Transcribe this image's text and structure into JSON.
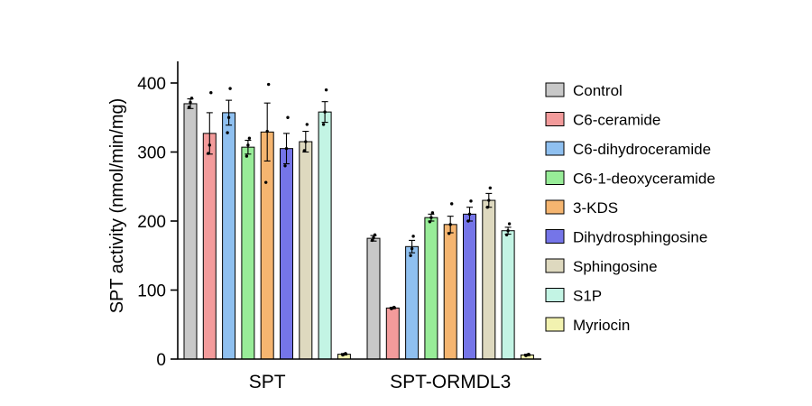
{
  "chart_data": {
    "type": "bar",
    "title": "",
    "xlabel": "",
    "ylabel": "SPT activity (nmol/min/mg)",
    "ylim": [
      0,
      430
    ],
    "yticks": [
      0,
      100,
      200,
      300,
      400
    ],
    "grid": false,
    "legend_position": "right",
    "categories": [
      "SPT",
      "SPT-ORMDL3"
    ],
    "series": [
      {
        "name": "Control",
        "color": "#c8c8c8",
        "values": [
          370,
          175
        ],
        "errors": [
          7,
          4
        ],
        "points": [
          [
            365,
            372,
            378
          ],
          [
            172,
            176,
            180
          ]
        ]
      },
      {
        "name": "C6-ceramide",
        "color": "#f39b9b",
        "values": [
          327,
          74
        ],
        "errors": [
          30,
          1
        ],
        "points": [
          [
            298,
            310,
            386
          ],
          [
            73,
            74,
            75
          ]
        ]
      },
      {
        "name": "C6-dihydroceramide",
        "color": "#8fc0f0",
        "values": [
          357,
          163
        ],
        "errors": [
          18,
          9
        ],
        "points": [
          [
            328,
            350,
            392
          ],
          [
            150,
            160,
            178
          ]
        ]
      },
      {
        "name": "C6-1-deoxyceramide",
        "color": "#98ec98",
        "values": [
          307,
          205
        ],
        "errors": [
          10,
          5
        ],
        "points": [
          [
            294,
            310,
            320
          ],
          [
            199,
            205,
            212
          ]
        ]
      },
      {
        "name": "3-KDS",
        "color": "#f5b570",
        "values": [
          329,
          195
        ],
        "errors": [
          42,
          12
        ],
        "points": [
          [
            256,
            330,
            398
          ],
          [
            182,
            195,
            225
          ]
        ]
      },
      {
        "name": "Dihydrosphingosine",
        "color": "#7575e8",
        "values": [
          305,
          210
        ],
        "errors": [
          22,
          10
        ],
        "points": [
          [
            280,
            305,
            350
          ],
          [
            200,
            210,
            229
          ]
        ]
      },
      {
        "name": "Sphingosine",
        "color": "#ded9bf",
        "values": [
          315,
          230
        ],
        "errors": [
          15,
          10
        ],
        "points": [
          [
            302,
            315,
            340
          ],
          [
            220,
            230,
            248
          ]
        ]
      },
      {
        "name": "S1P",
        "color": "#c3f4e4",
        "values": [
          358,
          186
        ],
        "errors": [
          15,
          5
        ],
        "points": [
          [
            340,
            358,
            390
          ],
          [
            180,
            186,
            196
          ]
        ]
      },
      {
        "name": "Myriocin",
        "color": "#f2f2b0",
        "values": [
          7,
          6
        ],
        "errors": [
          1,
          1
        ],
        "points": [
          [
            6,
            7,
            8
          ],
          [
            5,
            6,
            7
          ]
        ]
      }
    ]
  }
}
